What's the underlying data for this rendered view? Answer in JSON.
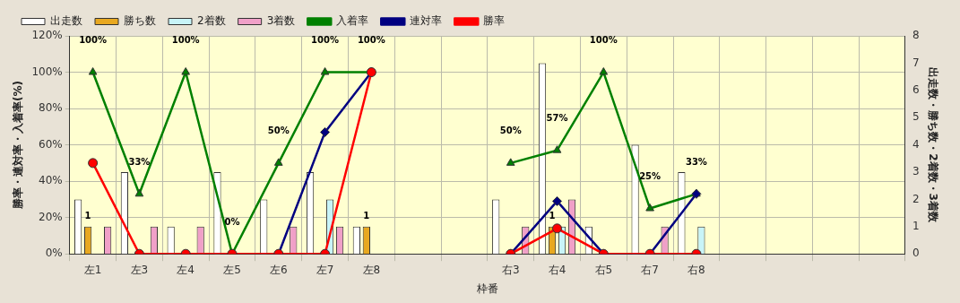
{
  "chart_data": {
    "type": "bar",
    "categories": [
      "左1",
      "左3",
      "左4",
      "左5",
      "左6",
      "左7",
      "左8",
      null,
      null,
      "右3",
      "右4",
      "右5",
      "右7",
      "右8",
      null,
      null,
      null,
      null
    ],
    "xlabel": "枠番",
    "ylabel": "勝率・連対率・入着率(%)",
    "y2label": "出走数・勝ち数・2着数・3着数",
    "ylim": [
      0,
      120
    ],
    "yticks": [
      {
        "value": 0,
        "label": "0%"
      },
      {
        "value": 20,
        "label": "20%"
      },
      {
        "value": 40,
        "label": "40%"
      },
      {
        "value": 60,
        "label": "60%"
      },
      {
        "value": 80,
        "label": "80%"
      },
      {
        "value": 100,
        "label": "100%"
      },
      {
        "value": 120,
        "label": "120%"
      }
    ],
    "y2lim": [
      0,
      8
    ],
    "y2ticks": [
      0,
      1,
      2,
      3,
      4,
      5,
      6,
      7,
      8
    ],
    "grid": true,
    "legend": "top",
    "series": [
      {
        "name": "出走数",
        "axis": "y2",
        "color": "#ffffff",
        "values": [
          2,
          3,
          1,
          3,
          2,
          3,
          1,
          null,
          null,
          2,
          7,
          1,
          4,
          3,
          null,
          null,
          null,
          null
        ]
      },
      {
        "name": "勝ち数",
        "axis": "y2",
        "color": "#e8a820",
        "values": [
          1,
          0,
          0,
          0,
          0,
          0,
          1,
          null,
          null,
          0,
          1,
          0,
          0,
          0,
          null,
          null,
          null,
          null
        ],
        "value_labels": [
          "1",
          null,
          null,
          null,
          null,
          null,
          "1",
          null,
          null,
          null,
          "1",
          null,
          null,
          null,
          null,
          null,
          null,
          null
        ]
      },
      {
        "name": "2着数",
        "axis": "y2",
        "color": "#c8f4f8",
        "values": [
          0,
          0,
          0,
          0,
          0,
          2,
          0,
          null,
          null,
          0,
          1,
          0,
          0,
          1,
          null,
          null,
          null,
          null
        ]
      },
      {
        "name": "3着数",
        "axis": "y2",
        "color": "#f0a0c8",
        "values": [
          1,
          1,
          1,
          0,
          1,
          1,
          0,
          null,
          null,
          1,
          2,
          0,
          1,
          0,
          null,
          null,
          null,
          null
        ]
      },
      {
        "name": "入着率",
        "type": "line",
        "color": "#008000",
        "marker": "triangle",
        "values": [
          100,
          33,
          100,
          0,
          50,
          100,
          100,
          null,
          null,
          50,
          57,
          100,
          25,
          33,
          null,
          null,
          null,
          null
        ],
        "value_labels": [
          "100%",
          "33%",
          "100%",
          "0%",
          "50%",
          "100%",
          "100%",
          null,
          null,
          "50%",
          "57%",
          "100%",
          "25%",
          "33%",
          null,
          null,
          null,
          null
        ]
      },
      {
        "name": "連対率",
        "type": "line",
        "color": "#000080",
        "marker": "diamond",
        "values": [
          null,
          null,
          null,
          null,
          0,
          67,
          100,
          null,
          null,
          0,
          29,
          0,
          0,
          33,
          null,
          null,
          null,
          null
        ]
      },
      {
        "name": "勝率",
        "type": "line",
        "color": "#ff0000",
        "marker": "circle",
        "values": [
          50,
          0,
          0,
          0,
          0,
          0,
          100,
          null,
          null,
          0,
          14,
          0,
          0,
          0,
          null,
          null,
          null,
          null
        ]
      }
    ]
  }
}
